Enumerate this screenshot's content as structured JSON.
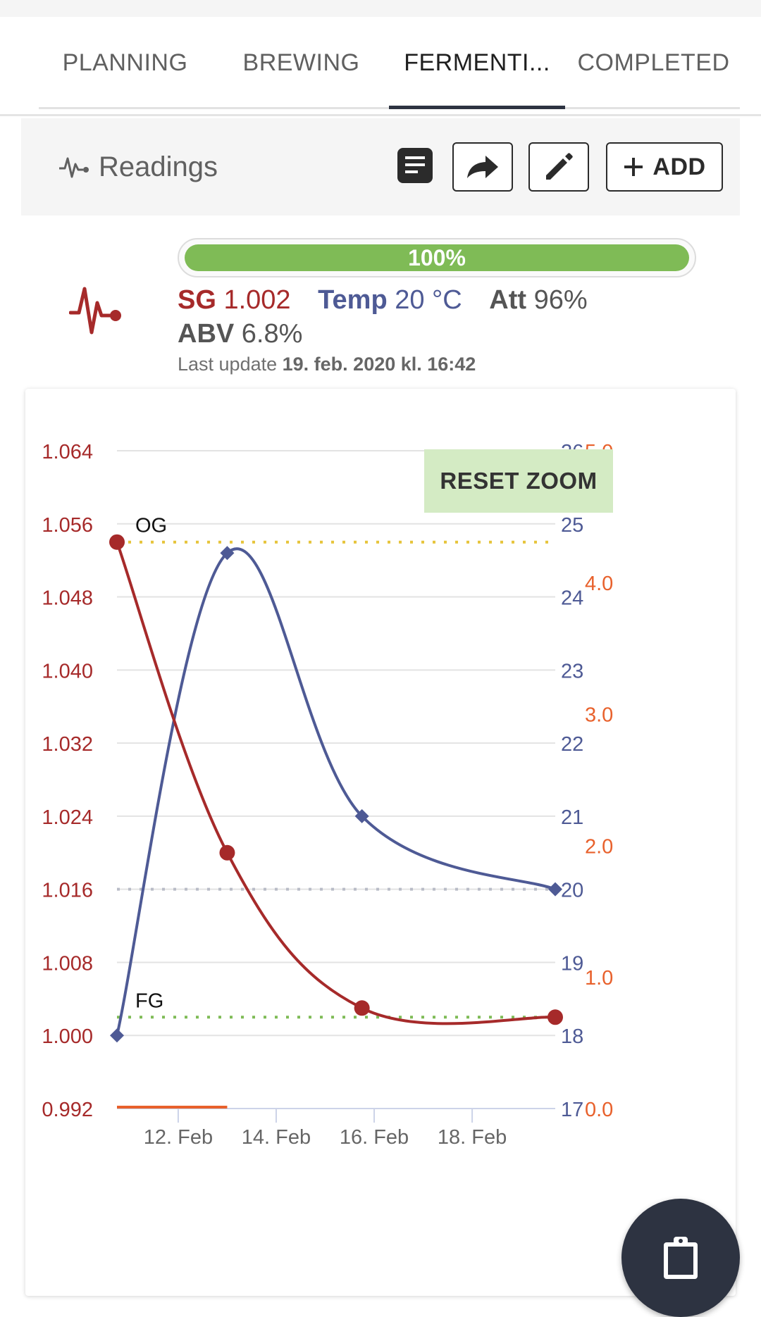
{
  "tabs": [
    {
      "label": "PLANNING",
      "active": false
    },
    {
      "label": "BREWING",
      "active": false
    },
    {
      "label": "FERMENTI...",
      "active": true
    },
    {
      "label": "COMPLETED",
      "active": false
    }
  ],
  "toolbar": {
    "title": "Readings",
    "icons": [
      "pulse-icon",
      "notes-icon",
      "share-icon",
      "edit-icon",
      "plus-icon"
    ],
    "add_label": "ADD"
  },
  "status": {
    "progress": {
      "value": 100,
      "label": "100%"
    },
    "sg_label": "SG",
    "sg_value": "1.002",
    "temp_label": "Temp",
    "temp_value": "20 °C",
    "att_label": "Att",
    "att_value": "96%",
    "abv_label": "ABV",
    "abv_value": "6.8%",
    "last_update_label": "Last update",
    "last_update_value": "19. feb. 2020 kl. 16:42"
  },
  "colors": {
    "sg": "#a62a2a",
    "temp": "#4e5a95",
    "abv": "#e8612c",
    "progress": "#7fbb56",
    "og_line": "#e6c43a",
    "fg_line": "#7fbb56",
    "target_temp_line": "#b9bcc7"
  },
  "reset_zoom_label": "RESET ZOOM",
  "fab_icon": "clipboard-icon",
  "chart_data": {
    "type": "line",
    "title": "",
    "x_dates": [
      "2020-02-10T18:00",
      "2020-02-13T00:00",
      "2020-02-15T18:00",
      "2020-02-19T16:42"
    ],
    "x_ticks": [
      "12. Feb",
      "14. Feb",
      "16. Feb",
      "18. Feb"
    ],
    "x_tick_dates": [
      "2020-02-12",
      "2020-02-14",
      "2020-02-16",
      "2020-02-18"
    ],
    "x_range": [
      "2020-02-10T18:00",
      "2020-02-19T16:42"
    ],
    "series": [
      {
        "name": "SG",
        "axis": "left",
        "marker": "circle",
        "values": [
          1.054,
          1.02,
          1.003,
          1.002
        ]
      },
      {
        "name": "Temp",
        "axis": "right",
        "marker": "diamond",
        "values": [
          18,
          24.6,
          21,
          20
        ]
      },
      {
        "name": "ABV",
        "axis": "right2",
        "marker": "none",
        "points": [
          [
            "2020-02-10T18:00",
            0.0
          ],
          [
            "2020-02-13T00:00",
            0.0
          ]
        ]
      }
    ],
    "axes": {
      "left": {
        "ticks": [
          "1.064",
          "1.056",
          "1.048",
          "1.040",
          "1.032",
          "1.024",
          "1.016",
          "1.008",
          "1.000",
          "0.992"
        ],
        "range": [
          0.992,
          1.064
        ]
      },
      "right": {
        "ticks": [
          "26",
          "25",
          "24",
          "23",
          "22",
          "21",
          "20",
          "19",
          "18",
          "17"
        ],
        "range": [
          17,
          26
        ]
      },
      "right2": {
        "ticks": [
          "5.0",
          "4.0",
          "3.0",
          "2.0",
          "1.0",
          "0.0"
        ],
        "range": [
          0,
          5
        ]
      }
    },
    "reference_lines": [
      {
        "label": "OG",
        "axis": "left",
        "value": 1.054
      },
      {
        "label": "FG",
        "axis": "left",
        "value": 1.002
      },
      {
        "label": "",
        "axis": "right",
        "value": 20
      }
    ],
    "grid": true,
    "legend": "none"
  }
}
